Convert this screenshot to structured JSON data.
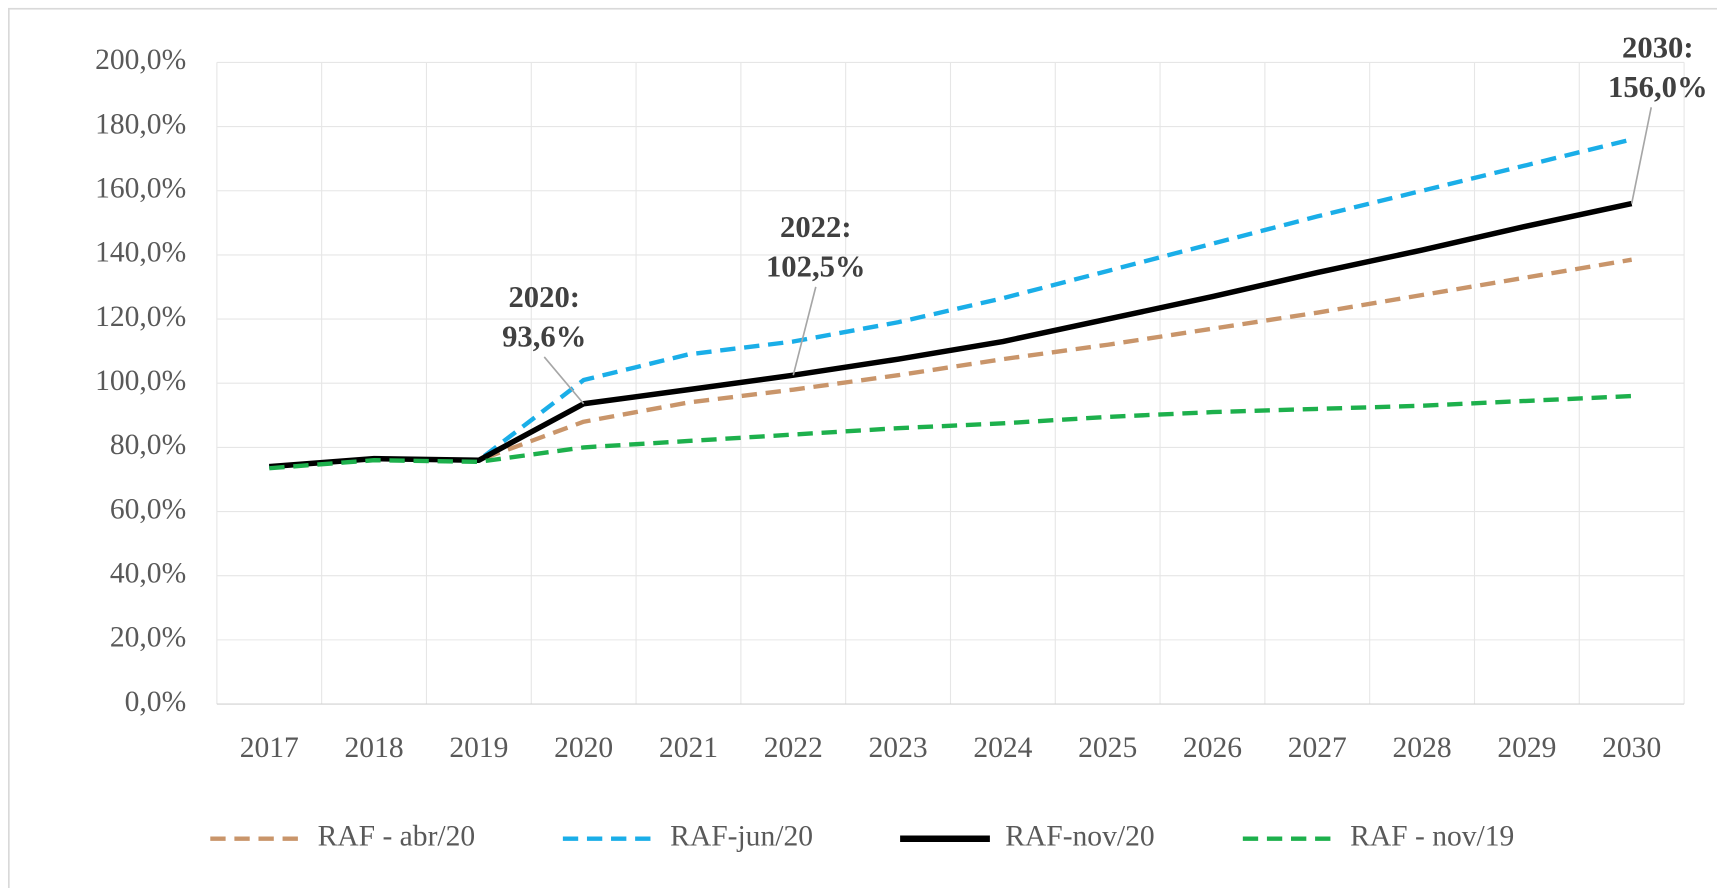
{
  "chart_data": {
    "type": "line",
    "categories": [
      "2017",
      "2018",
      "2019",
      "2020",
      "2021",
      "2022",
      "2023",
      "2024",
      "2025",
      "2026",
      "2027",
      "2028",
      "2029",
      "2030"
    ],
    "ylim": [
      0,
      200
    ],
    "yticks": [
      {
        "value": 0,
        "label": "0,0%"
      },
      {
        "value": 20,
        "label": "20,0%"
      },
      {
        "value": 40,
        "label": "40,0%"
      },
      {
        "value": 60,
        "label": "60,0%"
      },
      {
        "value": 80,
        "label": "80,0%"
      },
      {
        "value": 100,
        "label": "100,0%"
      },
      {
        "value": 120,
        "label": "120,0%"
      },
      {
        "value": 140,
        "label": "140,0%"
      },
      {
        "value": 160,
        "label": "160,0%"
      },
      {
        "value": 180,
        "label": "180,0%"
      },
      {
        "value": 200,
        "label": "200,0%"
      }
    ],
    "grid": true,
    "legend": "bottom",
    "series": [
      {
        "name": "RAF - abr/20",
        "color": "#c9956a",
        "dashed": true,
        "values": [
          74,
          76.5,
          76,
          88,
          94,
          98,
          102.5,
          107.5,
          112,
          117,
          122,
          127.5,
          133,
          138.5
        ]
      },
      {
        "name": "RAF-jun/20",
        "color": "#1aaee8",
        "dashed": true,
        "values": [
          74,
          76.5,
          76,
          101,
          109,
          113,
          119,
          126.5,
          135,
          143.5,
          152,
          160,
          168,
          176
        ]
      },
      {
        "name": "RAF-nov/20",
        "color": "#000000",
        "dashed": false,
        "values": [
          74,
          76.5,
          76,
          93.6,
          98,
          102.5,
          107.5,
          113,
          120,
          127,
          134.5,
          141.5,
          149,
          156
        ]
      },
      {
        "name": "RAF - nov/19",
        "color": "#1db04c",
        "dashed": true,
        "values": [
          73.5,
          76,
          75.5,
          80,
          82,
          84,
          86,
          87.5,
          89.5,
          91,
          92,
          93,
          94.5,
          96
        ]
      }
    ],
    "annotations": [
      {
        "lines": [
          "2020:",
          "93,6%"
        ]
      },
      {
        "lines": [
          "2022:",
          "102,5%"
        ]
      },
      {
        "lines": [
          "2030:",
          "156,0%"
        ]
      }
    ]
  }
}
